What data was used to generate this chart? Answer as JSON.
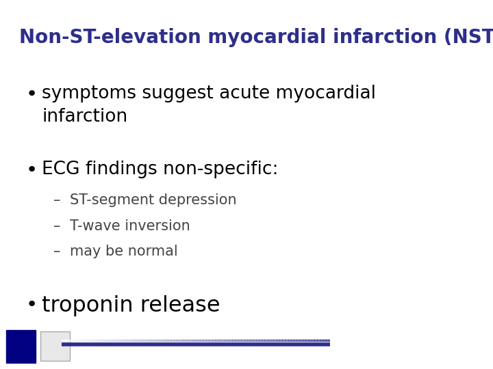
{
  "title": "Non-ST-elevation myocardial infarction (NSTEMI)",
  "title_color": "#2E2E8B",
  "title_fontsize": 20,
  "background_color": "#FFFFFF",
  "bullet1": "symptoms suggest acute myocardial\ninfarction",
  "bullet2": "ECG findings non-specific:",
  "sub_bullets": [
    "ST-segment depression",
    "T-wave inversion",
    "may be normal"
  ],
  "bullet3": "troponin release",
  "bullet_fontsize": 19,
  "sub_bullet_fontsize": 15,
  "bullet_color": "#000000",
  "sub_bullet_color": "#444444",
  "footer_line_color": "#2E2E8B",
  "footer_line_rgb": [
    0.18,
    0.18,
    0.545
  ],
  "logo1_color": "#000080",
  "logo2_color": "#e8e8e8"
}
